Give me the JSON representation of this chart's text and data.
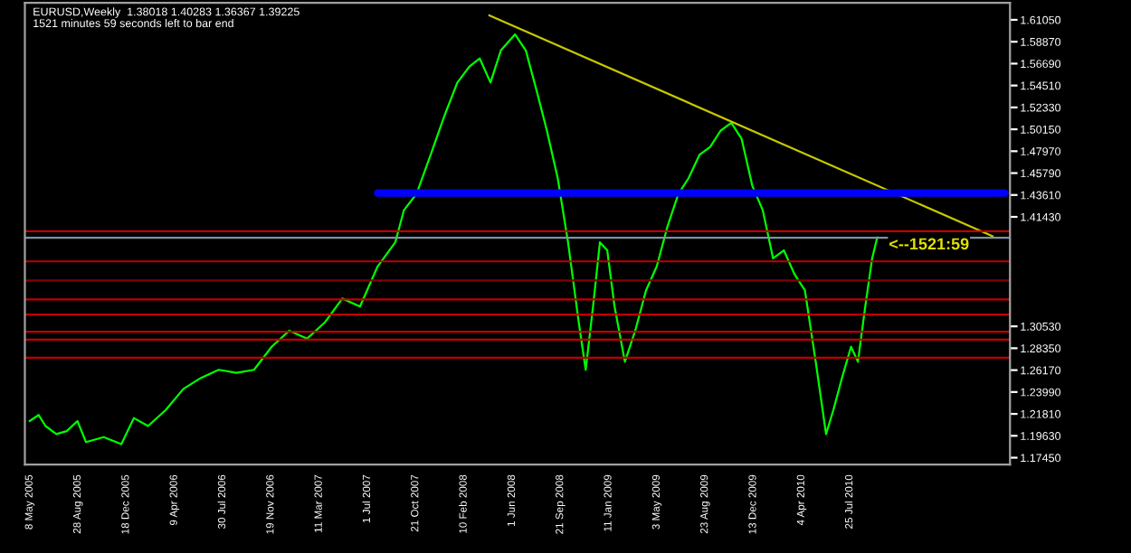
{
  "chart_data": {
    "type": "line",
    "annotations": [
      "EURUSD,Weekly  1.38018 1.40283 1.36367 1.39225",
      "1521 minutes 59 seconds left to bar end",
      {
        "text": "<--1521:59",
        "x": "2011-01-25",
        "y": 1.3936
      }
    ],
    "series": [
      {
        "color": "#00ff00",
        "x": [
          "2005-05-08",
          "2005-05-29",
          "2005-06-14",
          "2005-07-09",
          "2005-08-02",
          "2005-08-27",
          "2005-09-16",
          "2005-10-27",
          "2005-12-07",
          "2006-01-05",
          "2006-02-07",
          "2006-03-20",
          "2006-04-30",
          "2006-06-10",
          "2006-07-21",
          "2006-08-31",
          "2006-10-11",
          "2006-11-21",
          "2007-01-01",
          "2007-02-11",
          "2007-03-24",
          "2007-05-04",
          "2007-06-14",
          "2007-07-25",
          "2007-09-04",
          "2007-09-24",
          "2007-10-23",
          "2007-11-25",
          "2007-12-28",
          "2008-01-26",
          "2008-02-23",
          "2008-03-18",
          "2008-04-12",
          "2008-05-06",
          "2008-06-08",
          "2008-07-03",
          "2008-07-28",
          "2008-08-21",
          "2008-09-15",
          "2008-10-09",
          "2008-11-03",
          "2008-11-19",
          "2008-12-06",
          "2008-12-22",
          "2009-01-08",
          "2009-01-25",
          "2009-02-18",
          "2009-03-14",
          "2009-04-08",
          "2009-05-03",
          "2009-05-28",
          "2009-06-22",
          "2009-07-16",
          "2009-08-10",
          "2009-09-04",
          "2009-09-28",
          "2009-10-23",
          "2009-11-16",
          "2009-12-11",
          "2010-01-04",
          "2010-01-28",
          "2010-02-22",
          "2010-03-19",
          "2010-04-12",
          "2010-05-07",
          "2010-05-31",
          "2010-06-17",
          "2010-07-07",
          "2010-07-28",
          "2010-08-13",
          "2010-08-30",
          "2010-09-15",
          "2010-09-27"
        ],
        "values": [
          1.211,
          1.217,
          1.206,
          1.198,
          1.201,
          1.211,
          1.19,
          1.195,
          1.188,
          1.214,
          1.206,
          1.222,
          1.243,
          1.254,
          1.262,
          1.259,
          1.262,
          1.285,
          1.301,
          1.293,
          1.309,
          1.333,
          1.325,
          1.365,
          1.389,
          1.421,
          1.437,
          1.476,
          1.516,
          1.548,
          1.564,
          1.572,
          1.548,
          1.58,
          1.596,
          1.58,
          1.54,
          1.5,
          1.453,
          1.389,
          1.309,
          1.262,
          1.325,
          1.389,
          1.381,
          1.325,
          1.27,
          1.301,
          1.341,
          1.365,
          1.405,
          1.437,
          1.453,
          1.476,
          1.484,
          1.5,
          1.508,
          1.492,
          1.445,
          1.421,
          1.373,
          1.381,
          1.357,
          1.341,
          1.27,
          1.198,
          1.222,
          1.254,
          1.285,
          1.27,
          1.325,
          1.373,
          1.394
        ]
      },
      {
        "color": "#c8c800",
        "x": [
          "2008-04-09",
          "2011-06-22"
        ],
        "values": [
          1.615,
          1.395
        ]
      },
      {
        "color": "#0000ff",
        "x": [
          "2007-07-25",
          "2011-07-20"
        ],
        "values": [
          1.438,
          1.438
        ]
      }
    ],
    "xlim": [
      "2005-04-27",
      "2011-08-01"
    ],
    "xticks": [
      {
        "value": "2005-05-08",
        "label": "8 May 2005"
      },
      {
        "value": "2005-08-28",
        "label": "28 Aug 2005"
      },
      {
        "value": "2005-12-18",
        "label": "18 Dec 2005"
      },
      {
        "value": "2006-04-09",
        "label": "9 Apr 2006"
      },
      {
        "value": "2006-07-30",
        "label": "30 Jul 2006"
      },
      {
        "value": "2006-11-19",
        "label": "19 Nov 2006"
      },
      {
        "value": "2007-03-11",
        "label": "11 Mar 2007"
      },
      {
        "value": "2007-07-01",
        "label": "1 Jul 2007"
      },
      {
        "value": "2007-10-21",
        "label": "21 Oct 2007"
      },
      {
        "value": "2008-02-10",
        "label": "10 Feb 2008"
      },
      {
        "value": "2008-06-01",
        "label": "1 Jun 2008"
      },
      {
        "value": "2008-09-21",
        "label": "21 Sep 2008"
      },
      {
        "value": "2009-01-11",
        "label": "11 Jan 2009"
      },
      {
        "value": "2009-05-03",
        "label": "3 May 2009"
      },
      {
        "value": "2009-08-23",
        "label": "23 Aug 2009"
      },
      {
        "value": "2009-12-13",
        "label": "13 Dec 2009"
      },
      {
        "value": "2010-04-04",
        "label": "4 Apr 2010"
      },
      {
        "value": "2010-07-25",
        "label": "25 Jul 2010"
      }
    ],
    "ylim": [
      1.1677,
      1.6275
    ],
    "yticks": [
      {
        "value": 1.1745,
        "label": "1.17450"
      },
      {
        "value": 1.1963,
        "label": "1.19630"
      },
      {
        "value": 1.2181,
        "label": "1.21810"
      },
      {
        "value": 1.2399,
        "label": "1.23990"
      },
      {
        "value": 1.2617,
        "label": "1.26170"
      },
      {
        "value": 1.2835,
        "label": "1.28350"
      },
      {
        "value": 1.3053,
        "label": "1.30530"
      },
      {
        "value": 1.4143,
        "label": "1.41430"
      },
      {
        "value": 1.4361,
        "label": "1.43610"
      },
      {
        "value": 1.4579,
        "label": "1.45790"
      },
      {
        "value": 1.4797,
        "label": "1.47970"
      },
      {
        "value": 1.5015,
        "label": "1.50150"
      },
      {
        "value": 1.5233,
        "label": "1.52330"
      },
      {
        "value": 1.5451,
        "label": "1.54510"
      },
      {
        "value": 1.5669,
        "label": "1.56690"
      },
      {
        "value": 1.5887,
        "label": "1.58870"
      },
      {
        "value": 1.6105,
        "label": "1.61050"
      }
    ],
    "ref_lines": [
      {
        "axis": "y",
        "value": 1.4,
        "color": "#c00000"
      },
      {
        "axis": "y",
        "value": 1.3936,
        "color": "#8090a0"
      },
      {
        "axis": "y",
        "value": 1.37,
        "color": "#c00000"
      },
      {
        "axis": "y",
        "value": 1.351,
        "color": "#800000"
      },
      {
        "axis": "y",
        "value": 1.332,
        "color": "#c00000"
      },
      {
        "axis": "y",
        "value": 1.317,
        "color": "#c00000"
      },
      {
        "axis": "y",
        "value": 1.3,
        "color": "#c00000"
      },
      {
        "axis": "y",
        "value": 1.292,
        "color": "#c00000"
      },
      {
        "axis": "y",
        "value": 1.274,
        "color": "#c00000"
      }
    ],
    "grid": false,
    "legend": false
  }
}
